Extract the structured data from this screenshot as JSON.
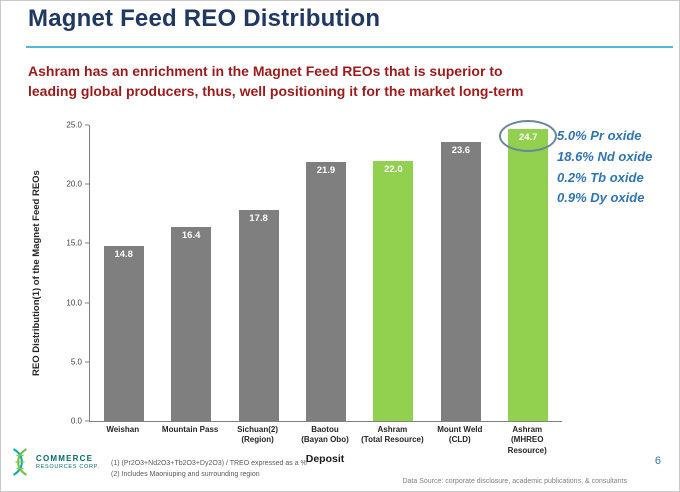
{
  "slide": {
    "title": "Magnet Feed REO Distribution",
    "subtitle_line1": "Ashram has an enrichment in the Magnet Feed REOs that is superior to",
    "subtitle_line2": "leading global producers, thus, well positioning it for the market long-term",
    "page_number": "6",
    "data_source": "Data Source: corporate disclosure, academic publications, & consultants",
    "footnote1": "(1) (Pr2O3+Nd2O3+Tb2O3+Dy2O3) / TREO expressed as a %",
    "footnote2": "(2) Includes Maoniuping and surrounding region"
  },
  "logo": {
    "line1": "COMMERCE",
    "line2": "RESOURCES CORP."
  },
  "annotation": {
    "lines": [
      "5.0% Pr oxide",
      "18.6% Nd oxide",
      "0.2% Tb oxide",
      "0.9% Dy oxide"
    ],
    "color": "#2E75B6"
  },
  "chart_data": {
    "type": "bar",
    "title": "",
    "xlabel": "Deposit",
    "ylabel": "REO Distribution(1) of the Magnet Feed REOs",
    "ylim": [
      0,
      25
    ],
    "yticks": [
      0.0,
      5.0,
      10.0,
      15.0,
      20.0,
      25.0
    ],
    "categories": [
      {
        "line1": "Weishan",
        "line2": ""
      },
      {
        "line1": "Mountain Pass",
        "line2": ""
      },
      {
        "line1": "Sichuan(2)",
        "line2": "(Region)"
      },
      {
        "line1": "Baotou",
        "line2": "(Bayan Obo)"
      },
      {
        "line1": "Ashram",
        "line2": "(Total Resource)"
      },
      {
        "line1": "Mount Weld",
        "line2": "(CLD)"
      },
      {
        "line1": "Ashram",
        "line2": "(MHREO Resource)"
      }
    ],
    "values": [
      14.8,
      16.4,
      17.8,
      21.9,
      22.0,
      23.6,
      24.7
    ],
    "bar_colors": [
      "#7F7F7F",
      "#7F7F7F",
      "#7F7F7F",
      "#7F7F7F",
      "#92D050",
      "#7F7F7F",
      "#92D050"
    ],
    "gray_color": "#7F7F7F",
    "green_color": "#92D050",
    "highlight_index": 6,
    "highlight_color": "#68869E",
    "grid": false,
    "legend_position": "none"
  }
}
